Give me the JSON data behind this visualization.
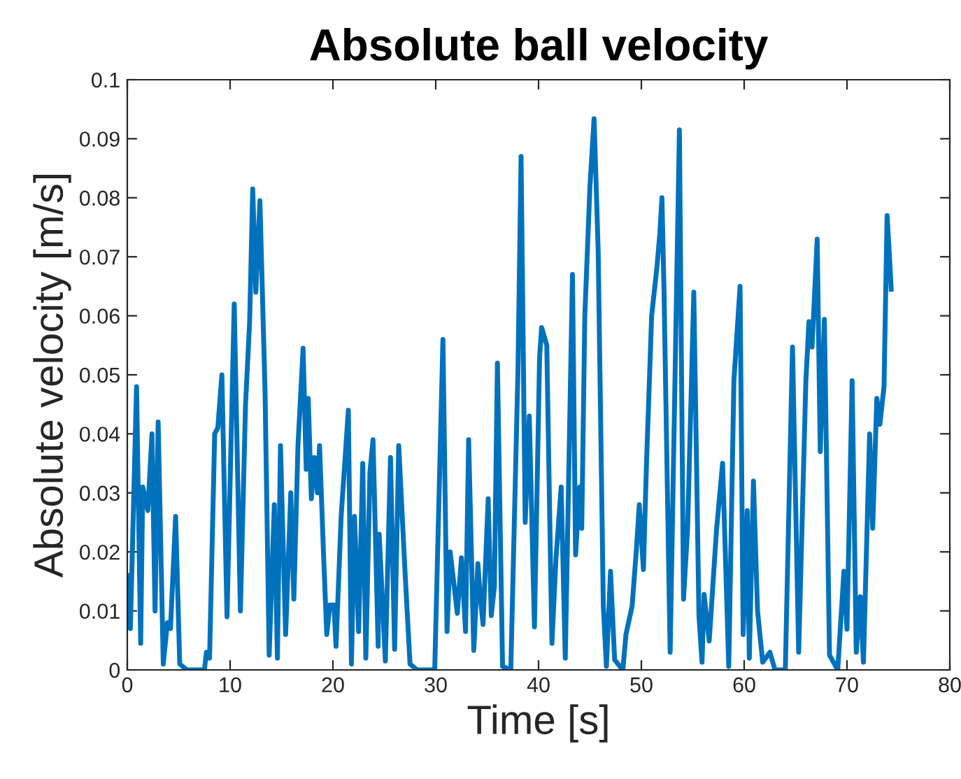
{
  "chart_data": {
    "type": "line",
    "title": "Absolute ball velocity",
    "xlabel": "Time [s]",
    "ylabel": "Absolute velocity [m/s]",
    "xlim": [
      0,
      80
    ],
    "xticks": [
      0,
      10,
      20,
      30,
      40,
      50,
      60,
      70,
      80
    ],
    "ylim": [
      0,
      0.1
    ],
    "yticks": [
      0,
      0.01,
      0.02,
      0.03,
      0.04,
      0.05,
      0.06,
      0.07,
      0.08,
      0.09,
      0.1
    ],
    "grid": false,
    "legend": false,
    "marker": "none",
    "line_style": "solid",
    "x": [
      0,
      0.3,
      0.9,
      1.3,
      1.5,
      2.0,
      2.4,
      2.7,
      3.0,
      3.5,
      3.9,
      4.2,
      4.7,
      5.1,
      5.8,
      7.5,
      7.7,
      8.0,
      8.5,
      8.8,
      9.2,
      9.7,
      10.4,
      11.0,
      11.5,
      11.9,
      12.2,
      12.5,
      12.9,
      13.4,
      13.8,
      14.3,
      14.6,
      14.9,
      15.4,
      15.9,
      16.2,
      16.6,
      17.1,
      17.4,
      17.6,
      17.9,
      18.2,
      18.5,
      18.7,
      19.1,
      19.4,
      19.7,
      20.1,
      20.3,
      20.8,
      21.5,
      21.8,
      22.1,
      22.5,
      22.9,
      23.2,
      23.6,
      23.9,
      24.4,
      24.5,
      25.1,
      25.6,
      26.0,
      26.4,
      27.0,
      27.5,
      28.2,
      29.9,
      30.7,
      31.1,
      31.4,
      32.1,
      32.5,
      32.9,
      33.2,
      33.7,
      34.1,
      34.3,
      34.6,
      35.1,
      35.4,
      35.7,
      36.0,
      36.5,
      37.3,
      38.0,
      38.3,
      38.7,
      39.1,
      39.6,
      40.1,
      40.3,
      40.8,
      41.3,
      41.7,
      42.2,
      42.6,
      43.3,
      43.6,
      44.0,
      44.2,
      44.5,
      45.0,
      45.4,
      45.8,
      46.3,
      46.6,
      47.0,
      47.4,
      48.2,
      48.5,
      49.1,
      49.5,
      49.8,
      50.2,
      50.5,
      51.0,
      51.5,
      51.8,
      52.0,
      52.2,
      52.8,
      53.7,
      54.1,
      54.5,
      55.1,
      55.6,
      55.9,
      56.1,
      56.6,
      57.3,
      57.9,
      58.5,
      59.0,
      59.6,
      59.9,
      60.3,
      60.5,
      60.9,
      61.3,
      61.8,
      62.5,
      63.0,
      64.0,
      64.7,
      65.3,
      66.0,
      66.3,
      66.6,
      67.1,
      67.4,
      67.8,
      68.3,
      69.1,
      69.7,
      70.0,
      70.5,
      70.9,
      71.3,
      71.6,
      72.2,
      72.5,
      72.9,
      73.2,
      73.6,
      73.9,
      74.1,
      74.3
    ],
    "series": [
      {
        "color": "#0072bd",
        "values": [
          0.016,
          0.007,
          0.048,
          0.0045,
          0.031,
          0.027,
          0.04,
          0.01,
          0.042,
          0.001,
          0.008,
          0.007,
          0.026,
          0.001,
          0,
          0,
          0.003,
          0.002,
          0.04,
          0.041,
          0.05,
          0.009,
          0.062,
          0.01,
          0.045,
          0.059,
          0.0815,
          0.064,
          0.0795,
          0.047,
          0.0025,
          0.028,
          0.002,
          0.038,
          0.006,
          0.03,
          0.012,
          0.038,
          0.0545,
          0.034,
          0.046,
          0.029,
          0.036,
          0.03,
          0.038,
          0.019,
          0.006,
          0.011,
          0.011,
          0.004,
          0.026,
          0.044,
          0.001,
          0.026,
          0.0065,
          0.035,
          0.002,
          0.0335,
          0.039,
          0.004,
          0.023,
          0.0015,
          0.036,
          0.0035,
          0.038,
          0.017,
          0.001,
          0,
          0,
          0.056,
          0.0065,
          0.02,
          0.0096,
          0.019,
          0.0065,
          0.039,
          0.0033,
          0.018,
          0.013,
          0.0077,
          0.029,
          0.0092,
          0.014,
          0.052,
          0.0006,
          0,
          0.051,
          0.087,
          0.025,
          0.043,
          0.0073,
          0.053,
          0.058,
          0.055,
          0.0045,
          0.019,
          0.031,
          0.002,
          0.067,
          0.0195,
          0.031,
          0.024,
          0.06,
          0.082,
          0.0934,
          0.071,
          0.0108,
          0.0006,
          0.0167,
          0.0017,
          0,
          0.006,
          0.0108,
          0.02,
          0.028,
          0.017,
          0.035,
          0.06,
          0.068,
          0.074,
          0.08,
          0.0645,
          0.003,
          0.0915,
          0.012,
          0.024,
          0.064,
          0.0092,
          0.0013,
          0.0128,
          0.0049,
          0.0235,
          0.035,
          0.0006,
          0.049,
          0.065,
          0.006,
          0.027,
          0.002,
          0.032,
          0.01,
          0.0013,
          0.003,
          0,
          0,
          0.0547,
          0.003,
          0.049,
          0.059,
          0.0547,
          0.073,
          0.037,
          0.0594,
          0.0025,
          0,
          0.0167,
          0.0069,
          0.049,
          0.003,
          0.0124,
          0.0013,
          0.04,
          0.024,
          0.046,
          0.0416,
          0.048,
          0.077,
          0.071,
          0.0645
        ]
      }
    ]
  }
}
